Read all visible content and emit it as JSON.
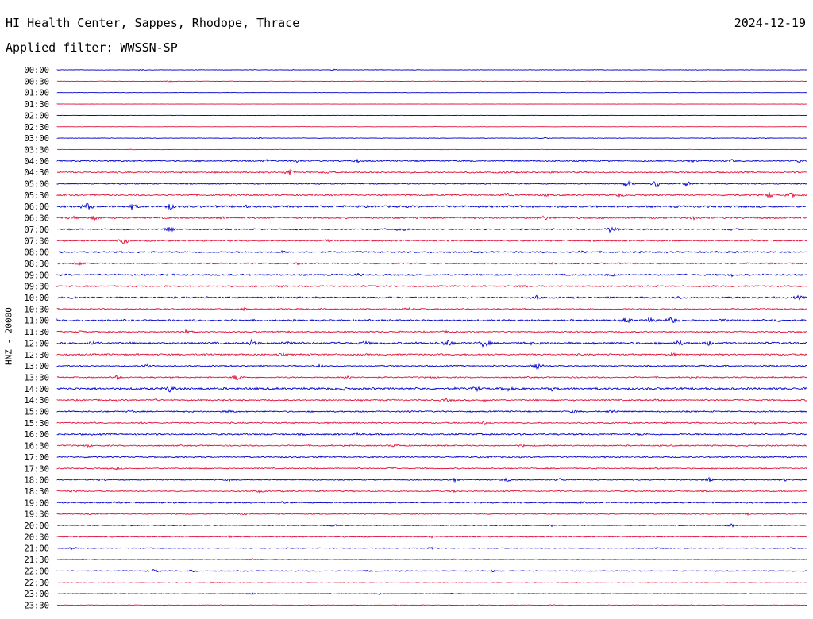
{
  "header": {
    "station": "HI Health Center, Sappes, Rhodope, Thrace",
    "date": "2024-12-19",
    "filter": "Applied filter: WWSSN-SP"
  },
  "colors": {
    "even_row": "#0000cc",
    "odd_row": "#e0103a",
    "text": "#000000"
  },
  "chart_data": {
    "type": "line",
    "ylabel": "HNZ - 20000",
    "rows": [
      {
        "label": "00:00",
        "base": 0.4,
        "events": [
          [
            0.11,
            0.5
          ],
          [
            0.37,
            0.5
          ],
          [
            0.43,
            0.4
          ]
        ]
      },
      {
        "label": "00:30",
        "base": 0.3,
        "events": [
          [
            0.15,
            0.7
          ],
          [
            0.71,
            0.6
          ]
        ]
      },
      {
        "label": "01:00",
        "base": 0.2,
        "events": []
      },
      {
        "label": "01:30",
        "base": 0.2,
        "events": [
          [
            0.99,
            0.5
          ]
        ]
      },
      {
        "label": "02:00",
        "base": 0.2,
        "events": []
      },
      {
        "label": "02:30",
        "base": 0.2,
        "events": []
      },
      {
        "label": "03:00",
        "base": 0.4,
        "events": [
          [
            0.27,
            0.5
          ],
          [
            0.65,
            0.6
          ],
          [
            0.95,
            0.5
          ]
        ]
      },
      {
        "label": "03:30",
        "base": 0.3,
        "events": [
          [
            0.1,
            0.5
          ],
          [
            0.52,
            0.4
          ],
          [
            0.65,
            0.4
          ]
        ]
      },
      {
        "label": "04:00",
        "base": 1.0,
        "events": [
          [
            0.08,
            0.8
          ],
          [
            0.28,
            1.2
          ],
          [
            0.32,
            2.2
          ],
          [
            0.4,
            1.6
          ],
          [
            0.85,
            1.2
          ],
          [
            0.9,
            1.4
          ],
          [
            0.99,
            2.5
          ]
        ]
      },
      {
        "label": "04:30",
        "base": 1.1,
        "events": [
          [
            0.31,
            6.5
          ],
          [
            0.36,
            1.2
          ],
          [
            0.6,
            1.0
          ]
        ]
      },
      {
        "label": "05:00",
        "base": 0.9,
        "events": [
          [
            0.76,
            5.0
          ],
          [
            0.8,
            7.5
          ],
          [
            0.84,
            4.0
          ],
          [
            0.58,
            0.8
          ]
        ]
      },
      {
        "label": "05:30",
        "base": 1.2,
        "events": [
          [
            0.6,
            2.5
          ],
          [
            0.65,
            1.5
          ],
          [
            0.75,
            1.8
          ],
          [
            0.95,
            4.0
          ],
          [
            0.98,
            3.5
          ]
        ]
      },
      {
        "label": "06:00",
        "base": 1.5,
        "events": [
          [
            0.04,
            5.0
          ],
          [
            0.1,
            3.0
          ],
          [
            0.15,
            4.5
          ],
          [
            0.25,
            1.5
          ]
        ]
      },
      {
        "label": "06:30",
        "base": 1.3,
        "events": [
          [
            0.02,
            1.8
          ],
          [
            0.05,
            2.5
          ],
          [
            0.22,
            2.0
          ],
          [
            0.65,
            3.0
          ],
          [
            0.85,
            1.5
          ]
        ]
      },
      {
        "label": "07:00",
        "base": 1.0,
        "events": [
          [
            0.15,
            4.0
          ],
          [
            0.46,
            3.0
          ],
          [
            0.74,
            5.5
          ],
          [
            0.9,
            1.5
          ]
        ]
      },
      {
        "label": "07:30",
        "base": 1.1,
        "events": [
          [
            0.09,
            4.5
          ],
          [
            0.36,
            1.2
          ],
          [
            0.93,
            1.2
          ]
        ]
      },
      {
        "label": "08:00",
        "base": 1.2,
        "events": [
          [
            0.3,
            1.0
          ],
          [
            0.7,
            1.0
          ]
        ]
      },
      {
        "label": "08:30",
        "base": 1.0,
        "events": [
          [
            0.03,
            2.5
          ],
          [
            0.32,
            1.2
          ],
          [
            0.66,
            1.0
          ]
        ]
      },
      {
        "label": "09:00",
        "base": 1.2,
        "events": [
          [
            0.4,
            1.5
          ],
          [
            0.74,
            1.8
          ],
          [
            0.9,
            1.3
          ]
        ]
      },
      {
        "label": "09:30",
        "base": 1.1,
        "events": [
          [
            0.3,
            1.2
          ],
          [
            0.62,
            1.0
          ]
        ]
      },
      {
        "label": "10:00",
        "base": 1.2,
        "events": [
          [
            0.02,
            2.0
          ],
          [
            0.64,
            2.5
          ],
          [
            0.83,
            2.0
          ],
          [
            0.99,
            2.2
          ]
        ]
      },
      {
        "label": "10:30",
        "base": 1.0,
        "events": [
          [
            0.25,
            1.2
          ],
          [
            0.47,
            1.5
          ],
          [
            0.8,
            1.4
          ]
        ]
      },
      {
        "label": "11:00",
        "base": 1.3,
        "events": [
          [
            0.76,
            5.0
          ],
          [
            0.79,
            3.5
          ],
          [
            0.82,
            6.0
          ],
          [
            0.89,
            2.0
          ],
          [
            0.96,
            1.8
          ]
        ]
      },
      {
        "label": "11:30",
        "base": 1.0,
        "events": [
          [
            0.17,
            3.0
          ],
          [
            0.03,
            1.2
          ],
          [
            0.52,
            1.0
          ]
        ]
      },
      {
        "label": "12:00",
        "base": 1.5,
        "events": [
          [
            0.05,
            3.5
          ],
          [
            0.26,
            4.5
          ],
          [
            0.31,
            4.0
          ],
          [
            0.41,
            1.8
          ],
          [
            0.52,
            6.0
          ],
          [
            0.57,
            6.5
          ],
          [
            0.63,
            1.5
          ],
          [
            0.83,
            3.5
          ],
          [
            0.87,
            2.5
          ]
        ]
      },
      {
        "label": "12:30",
        "base": 1.2,
        "events": [
          [
            0.2,
            1.2
          ],
          [
            0.3,
            1.4
          ],
          [
            0.82,
            1.8
          ]
        ]
      },
      {
        "label": "13:00",
        "base": 0.9,
        "events": [
          [
            0.12,
            3.0
          ],
          [
            0.35,
            2.0
          ],
          [
            0.64,
            6.5
          ],
          [
            0.96,
            1.0
          ]
        ]
      },
      {
        "label": "13:30",
        "base": 1.0,
        "events": [
          [
            0.08,
            2.5
          ],
          [
            0.24,
            5.0
          ],
          [
            0.39,
            3.5
          ],
          [
            0.5,
            1.0
          ]
        ]
      },
      {
        "label": "14:00",
        "base": 1.6,
        "events": [
          [
            0.15,
            4.0
          ],
          [
            0.38,
            1.5
          ],
          [
            0.56,
            3.0
          ],
          [
            0.6,
            3.5
          ],
          [
            0.66,
            2.0
          ]
        ]
      },
      {
        "label": "14:30",
        "base": 1.1,
        "events": [
          [
            0.13,
            1.2
          ],
          [
            0.52,
            1.8
          ],
          [
            0.57,
            1.5
          ],
          [
            0.8,
            1.0
          ]
        ]
      },
      {
        "label": "15:00",
        "base": 1.0,
        "events": [
          [
            0.1,
            1.3
          ],
          [
            0.23,
            1.5
          ],
          [
            0.47,
            1.4
          ],
          [
            0.74,
            2.8
          ],
          [
            0.69,
            1.8
          ]
        ]
      },
      {
        "label": "15:30",
        "base": 1.0,
        "events": [
          [
            0.11,
            1.2
          ],
          [
            0.57,
            1.4
          ],
          [
            0.93,
            1.2
          ]
        ]
      },
      {
        "label": "16:00",
        "base": 1.2,
        "events": [
          [
            0.4,
            1.5
          ],
          [
            0.78,
            1.0
          ]
        ]
      },
      {
        "label": "16:30",
        "base": 1.0,
        "events": [
          [
            0.04,
            1.8
          ],
          [
            0.45,
            1.5
          ],
          [
            0.62,
            1.2
          ]
        ]
      },
      {
        "label": "17:00",
        "base": 1.0,
        "events": [
          [
            0.05,
            1.5
          ],
          [
            0.35,
            1.3
          ],
          [
            0.58,
            1.2
          ]
        ]
      },
      {
        "label": "17:30",
        "base": 0.9,
        "events": [
          [
            0.08,
            1.3
          ],
          [
            0.45,
            1.2
          ],
          [
            0.8,
            1.0
          ]
        ]
      },
      {
        "label": "18:00",
        "base": 0.8,
        "events": [
          [
            0.06,
            1.5
          ],
          [
            0.23,
            1.5
          ],
          [
            0.53,
            2.0
          ],
          [
            0.6,
            2.2
          ],
          [
            0.67,
            2.0
          ],
          [
            0.87,
            3.5
          ],
          [
            0.97,
            1.5
          ]
        ]
      },
      {
        "label": "18:30",
        "base": 0.9,
        "events": [
          [
            0.02,
            1.2
          ],
          [
            0.27,
            1.3
          ],
          [
            0.53,
            1.2
          ]
        ]
      },
      {
        "label": "19:00",
        "base": 1.0,
        "events": [
          [
            0.08,
            1.4
          ],
          [
            0.3,
            1.2
          ],
          [
            0.7,
            1.0
          ]
        ]
      },
      {
        "label": "19:30",
        "base": 0.8,
        "events": [
          [
            0.04,
            1.2
          ],
          [
            0.25,
            1.4
          ],
          [
            0.92,
            1.0
          ]
        ]
      },
      {
        "label": "20:00",
        "base": 0.6,
        "events": [
          [
            0.37,
            1.8
          ],
          [
            0.66,
            1.4
          ],
          [
            0.9,
            2.5
          ]
        ]
      },
      {
        "label": "20:30",
        "base": 0.8,
        "events": [
          [
            0.23,
            1.0
          ],
          [
            0.5,
            1.0
          ]
        ]
      },
      {
        "label": "21:00",
        "base": 0.6,
        "events": [
          [
            0.02,
            1.5
          ],
          [
            0.5,
            1.0
          ],
          [
            0.8,
            1.0
          ],
          [
            0.98,
            1.0
          ]
        ]
      },
      {
        "label": "21:30",
        "base": 0.5,
        "events": [
          [
            0.04,
            1.0
          ],
          [
            0.26,
            1.2
          ],
          [
            0.53,
            1.0
          ]
        ]
      },
      {
        "label": "22:00",
        "base": 0.7,
        "events": [
          [
            0.13,
            3.0
          ],
          [
            0.18,
            1.5
          ],
          [
            0.42,
            1.5
          ],
          [
            0.58,
            1.2
          ]
        ]
      },
      {
        "label": "22:30",
        "base": 0.5,
        "events": [
          [
            0.21,
            1.4
          ]
        ]
      },
      {
        "label": "23:00",
        "base": 0.4,
        "events": [
          [
            0.26,
            2.0
          ],
          [
            0.43,
            1.0
          ],
          [
            0.53,
            1.0
          ]
        ]
      },
      {
        "label": "23:30",
        "base": 0.5,
        "events": []
      }
    ]
  }
}
